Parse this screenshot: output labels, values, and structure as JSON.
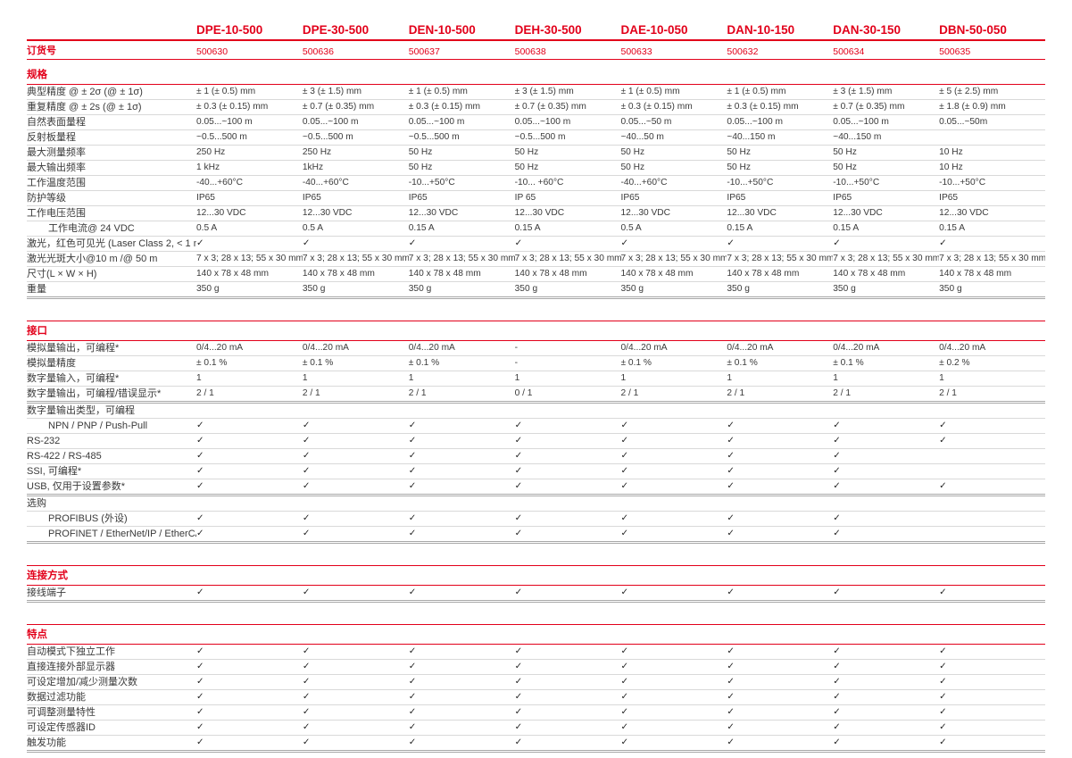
{
  "accent_color": "#e2001a",
  "check_symbol": "✓",
  "order_row_label": "订货号",
  "columns": [
    {
      "model": "DPE-10-500",
      "order_no": "500630"
    },
    {
      "model": "DPE-30-500",
      "order_no": "500636"
    },
    {
      "model": "DEN-10-500",
      "order_no": "500637"
    },
    {
      "model": "DEH-30-500",
      "order_no": "500638"
    },
    {
      "model": "DAE-10-050",
      "order_no": "500633"
    },
    {
      "model": "DAN-10-150",
      "order_no": "500632"
    },
    {
      "model": "DAN-30-150",
      "order_no": "500634"
    },
    {
      "model": "DBN-50-050",
      "order_no": "500635"
    }
  ],
  "sections": [
    {
      "name": "规格",
      "first": true,
      "rows": [
        {
          "label": "典型精度 @ ± 2σ (@ ± 1σ)",
          "type": "text",
          "values": [
            "± 1 (± 0.5) mm",
            "± 3 (± 1.5) mm",
            "± 1 (± 0.5) mm",
            "± 3 (± 1.5) mm",
            "± 1 (± 0.5) mm",
            "± 1 (± 0.5) mm",
            "± 3 (± 1.5) mm",
            "± 5 (± 2.5) mm"
          ]
        },
        {
          "label": "重复精度 @ ± 2s (@ ± 1σ)",
          "type": "text",
          "values": [
            "± 0.3 (± 0.15) mm",
            "± 0.7 (± 0.35) mm",
            "± 0.3 (± 0.15) mm",
            "± 0.7 (± 0.35) mm",
            "± 0.3 (± 0.15) mm",
            "± 0.3 (± 0.15) mm",
            "± 0.7 (± 0.35) mm",
            "± 1.8 (± 0.9) mm"
          ]
        },
        {
          "label": "自然表面量程",
          "type": "text",
          "values": [
            "0.05...~100 m",
            "0.05...~100 m",
            "0.05...~100 m",
            "0.05...~100 m",
            "0.05...~50 m",
            "0.05...~100 m",
            "0.05...~100 m",
            "0.05...~50m"
          ]
        },
        {
          "label": "反射板量程",
          "type": "text",
          "values": [
            "~0.5...500 m",
            "~0.5...500 m",
            "~0.5...500 m",
            "~0.5...500 m",
            "~40...50 m",
            "~40...150 m",
            "~40...150 m",
            ""
          ]
        },
        {
          "label": "最大测量频率",
          "type": "text",
          "values": [
            "250 Hz",
            "250 Hz",
            "50 Hz",
            "50 Hz",
            "50 Hz",
            "50 Hz",
            "50 Hz",
            "10 Hz"
          ]
        },
        {
          "label": "最大输出频率",
          "type": "text",
          "values": [
            "1 kHz",
            "1kHz",
            "50 Hz",
            "50 Hz",
            "50 Hz",
            "50 Hz",
            "50 Hz",
            "10 Hz"
          ]
        },
        {
          "label": "工作温度范围",
          "type": "text",
          "values": [
            "-40...+60°C",
            "-40...+60°C",
            "-10...+50°C",
            "-10... +60°C",
            "-40...+60°C",
            "-10...+50°C",
            "-10...+50°C",
            "-10...+50°C"
          ]
        },
        {
          "label": "防护等级",
          "type": "text",
          "values": [
            "IP65",
            "IP65",
            "IP65",
            "IP 65",
            "IP65",
            "IP65",
            "IP65",
            "IP65"
          ]
        },
        {
          "label": "工作电压范围",
          "type": "text",
          "values": [
            "12...30 VDC",
            "12...30 VDC",
            "12...30 VDC",
            "12...30 VDC",
            "12...30 VDC",
            "12...30 VDC",
            "12...30 VDC",
            "12...30 VDC"
          ]
        },
        {
          "label": "工作电流@ 24 VDC",
          "type": "text",
          "indent": true,
          "values": [
            "0.5 A",
            "0.5 A",
            "0.15 A",
            "0.15 A",
            "0.5 A",
            "0.15 A",
            "0.15 A",
            "0.15 A"
          ]
        },
        {
          "label": "激光，红色可见光 (Laser Class 2, < 1 mW)",
          "type": "check",
          "values": [
            1,
            1,
            1,
            1,
            1,
            1,
            1,
            1
          ]
        },
        {
          "label": "激光光斑大小@10 m /@ 50 m",
          "type": "text",
          "values": [
            "7 x 3; 28 x 13; 55 x 30 mm",
            "7 x 3; 28 x 13; 55 x 30 mm",
            "7 x 3; 28 x 13; 55 x 30 mm",
            "7 x 3; 28 x 13; 55 x 30 mm",
            "7 x 3; 28 x 13; 55 x 30 mm",
            "7 x 3; 28 x 13; 55 x 30 mm",
            "7 x 3; 28 x 13; 55 x 30 mm",
            "7 x 3; 28 x 13; 55 x 30 mm"
          ]
        },
        {
          "label": "尺寸(L × W × H)",
          "type": "text",
          "values": [
            "140 x 78 x 48 mm",
            "140 x 78 x 48 mm",
            "140 x 78 x 48 mm",
            "140 x 78 x 48 mm",
            "140 x 78 x 48 mm",
            "140 x 78 x 48 mm",
            "140 x 78 x 48 mm",
            "140 x 78 x 48 mm"
          ]
        },
        {
          "label": "重量",
          "type": "text",
          "end": true,
          "values": [
            "350 g",
            "350 g",
            "350 g",
            "350 g",
            "350 g",
            "350 g",
            "350 g",
            "350 g"
          ]
        }
      ]
    },
    {
      "name": "接口",
      "rows": [
        {
          "label": "模拟量输出，可编程*",
          "type": "text",
          "values": [
            "0/4...20 mA",
            "0/4...20 mA",
            "0/4...20 mA",
            "-",
            "0/4...20 mA",
            "0/4...20 mA",
            "0/4...20 mA",
            "0/4...20 mA"
          ]
        },
        {
          "label": "模拟量精度",
          "type": "text",
          "values": [
            "± 0.1 %",
            "± 0.1 %",
            "± 0.1 %",
            "-",
            "± 0.1 %",
            "± 0.1 %",
            "± 0.1 %",
            "± 0.2 %"
          ]
        },
        {
          "label": "数字量输入，可编程*",
          "type": "text",
          "values": [
            "1",
            "1",
            "1",
            "1",
            "1",
            "1",
            "1",
            "1"
          ]
        },
        {
          "label": "数字量输出，可编程/错误显示*",
          "type": "text",
          "end": true,
          "values": [
            "2 / 1",
            "2 / 1",
            "2 / 1",
            "0 / 1",
            "2 / 1",
            "2 / 1",
            "2 / 1",
            "2 / 1"
          ]
        },
        {
          "label": "数字量输出类型，可编程",
          "type": "group",
          "values": [
            "",
            "",
            "",
            "",
            "",
            "",
            "",
            ""
          ]
        },
        {
          "label": "NPN / PNP / Push-Pull",
          "type": "check",
          "indent": true,
          "values": [
            1,
            1,
            1,
            1,
            1,
            1,
            1,
            1
          ]
        },
        {
          "label": "RS-232",
          "type": "check",
          "values": [
            1,
            1,
            1,
            1,
            1,
            1,
            1,
            1
          ]
        },
        {
          "label": "RS-422 / RS-485",
          "type": "check",
          "values": [
            1,
            1,
            1,
            1,
            1,
            1,
            1,
            0
          ]
        },
        {
          "label": "SSI, 可编程*",
          "type": "check",
          "values": [
            1,
            1,
            1,
            1,
            1,
            1,
            1,
            0
          ]
        },
        {
          "label": "USB, 仅用于设置参数*",
          "type": "check",
          "end": true,
          "values": [
            1,
            1,
            1,
            1,
            1,
            1,
            1,
            1
          ]
        },
        {
          "label": "选购",
          "type": "group",
          "values": [
            "",
            "",
            "",
            "",
            "",
            "",
            "",
            ""
          ]
        },
        {
          "label": "PROFIBUS (外设)",
          "type": "check",
          "indent": true,
          "values": [
            1,
            1,
            1,
            1,
            1,
            1,
            1,
            0
          ]
        },
        {
          "label": "PROFINET / EtherNet/IP / EtherCAT",
          "type": "check",
          "indent": true,
          "end": true,
          "values": [
            1,
            1,
            1,
            1,
            1,
            1,
            1,
            0
          ]
        }
      ]
    },
    {
      "name": "连接方式",
      "rows": [
        {
          "label": "接线端子",
          "type": "check",
          "end": true,
          "values": [
            1,
            1,
            1,
            1,
            1,
            1,
            1,
            1
          ]
        }
      ]
    },
    {
      "name": "特点",
      "rows": [
        {
          "label": "自动模式下独立工作",
          "type": "check",
          "values": [
            1,
            1,
            1,
            1,
            1,
            1,
            1,
            1
          ]
        },
        {
          "label": "直接连接外部显示器",
          "type": "check",
          "values": [
            1,
            1,
            1,
            1,
            1,
            1,
            1,
            1
          ]
        },
        {
          "label": "可设定增加/减少测量次数",
          "type": "check",
          "values": [
            1,
            1,
            1,
            1,
            1,
            1,
            1,
            1
          ]
        },
        {
          "label": "数据过滤功能",
          "type": "check",
          "values": [
            1,
            1,
            1,
            1,
            1,
            1,
            1,
            1
          ]
        },
        {
          "label": "可调整测量特性",
          "type": "check",
          "values": [
            1,
            1,
            1,
            1,
            1,
            1,
            1,
            1
          ]
        },
        {
          "label": "可设定传感器ID",
          "type": "check",
          "values": [
            1,
            1,
            1,
            1,
            1,
            1,
            1,
            1
          ]
        },
        {
          "label": "触发功能",
          "type": "check",
          "end": true,
          "values": [
            1,
            1,
            1,
            1,
            1,
            1,
            1,
            1
          ]
        }
      ]
    }
  ]
}
